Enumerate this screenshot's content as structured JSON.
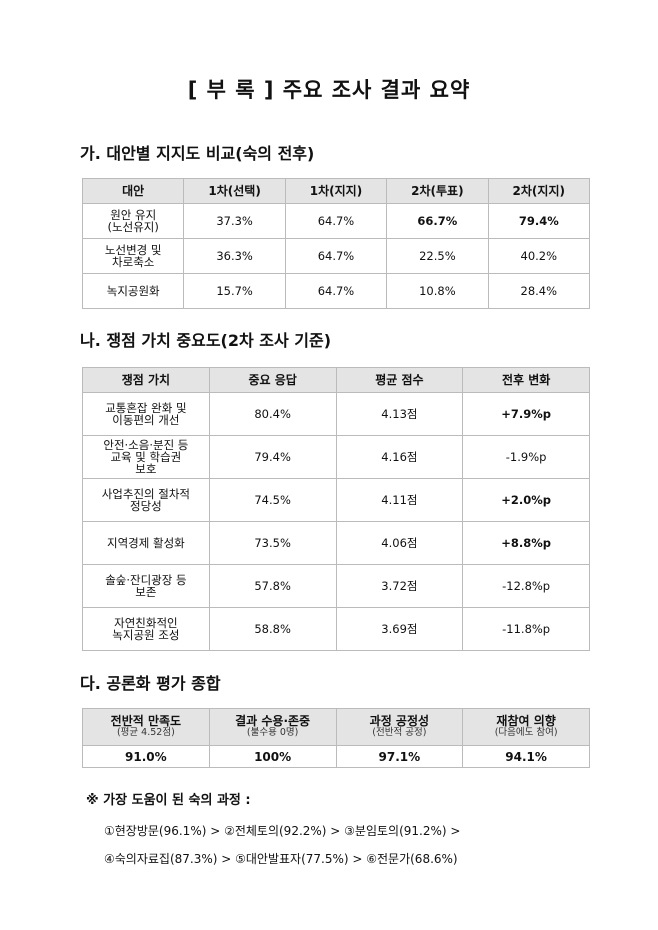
{
  "title": "[ 부 록 ] 주요 조사 결과 요약",
  "section_a": {
    "heading": "가. 대안별 지지도 비교(숙의 전후)",
    "headers": [
      "대안",
      "1차(선택)",
      "1차(지지)",
      "2차(투표)",
      "2차(지지)"
    ],
    "rows": [
      [
        "원안 유지\n(노선유지)",
        "37.3%",
        "64.7%",
        "66.7%",
        "79.4%"
      ],
      [
        "노선변경 및\n차로축소",
        "36.3%",
        "64.7%",
        "22.5%",
        "40.2%"
      ],
      [
        "녹지공원화",
        "15.7%",
        "64.7%",
        "10.8%",
        "28.4%"
      ]
    ]
  },
  "section_b": {
    "heading": "나. 쟁점 가치 중요도(2차 조사 기준)",
    "headers": [
      "쟁점 가치",
      "중요 응답",
      "평균 점수",
      "전후 변화"
    ],
    "rows": [
      [
        "교통혼잡 완화 및\n이동편의 개선",
        "80.4%",
        "4.13점",
        "+7.9%p"
      ],
      [
        "안전·소음·분진 등\n교육 및 학습권\n보호",
        "79.4%",
        "4.16점",
        "-1.9%p"
      ],
      [
        "사업추진의 절차적\n정당성",
        "74.5%",
        "4.11점",
        "+2.0%p"
      ],
      [
        "지역경제 활성화",
        "73.5%",
        "4.06점",
        "+8.8%p"
      ],
      [
        "솔숲·잔디광장 등\n보존",
        "57.8%",
        "3.72점",
        "-12.8%p"
      ],
      [
        "자연친화적인\n녹지공원 조성",
        "58.8%",
        "3.69점",
        "-11.8%p"
      ]
    ]
  },
  "section_c": {
    "heading": "다. 공론화 평가 종합",
    "headers": [
      {
        "main": "전반적 만족도",
        "sub": "(평균 4.52점)"
      },
      {
        "main": "결과 수용·존중",
        "sub": "(불수용 0명)"
      },
      {
        "main": "과정 공정성",
        "sub": "(전반적 공정)"
      },
      {
        "main": "재참여 의향",
        "sub": "(다음에도 참여)"
      }
    ],
    "values": [
      "91.0%",
      "100%",
      "97.1%",
      "94.1%"
    ]
  },
  "note": {
    "label": "※ 가장 도움이 된 숙의 과정 :",
    "line1": "①현장방문(96.1%)  >  ②전체토의(92.2%)  >  ③분임토의(91.2%)  >",
    "line2": "④숙의자료집(87.3%)  >  ⑤대안발표자(77.5%)  >  ⑥전문가(68.6%)"
  }
}
